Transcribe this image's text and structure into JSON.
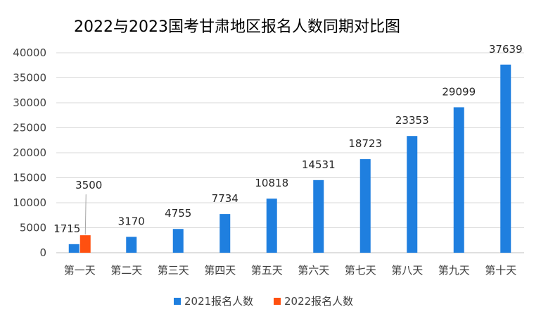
{
  "chart_data": {
    "type": "bar",
    "title": "2022与2023国考甘肃地区报名人数同期对比图",
    "categories": [
      "第一天",
      "第二天",
      "第三天",
      "第四天",
      "第五天",
      "第六天",
      "第七天",
      "第八天",
      "第九天",
      "第十天"
    ],
    "series": [
      {
        "name": "2021报名人数",
        "color": "#1F7FDF",
        "values": [
          1715,
          3170,
          4755,
          7734,
          10818,
          14531,
          18723,
          23353,
          29099,
          37639
        ]
      },
      {
        "name": "2022报名人数",
        "color": "#FF5010",
        "values": [
          3500,
          null,
          null,
          null,
          null,
          null,
          null,
          null,
          null,
          null
        ]
      }
    ],
    "y_ticks": [
      0,
      5000,
      10000,
      15000,
      20000,
      25000,
      30000,
      35000,
      40000
    ],
    "ylim": [
      0,
      40000
    ],
    "grid": true,
    "legend_position": "bottom"
  }
}
